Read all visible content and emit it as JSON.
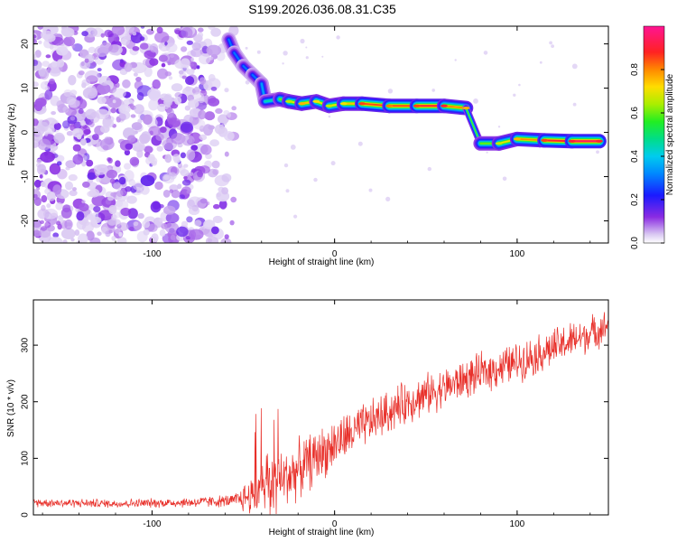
{
  "title": "S199.2026.036.08.31.C35",
  "chart_data": [
    {
      "type": "heatmap",
      "xlabel": "Height of straight line (km)",
      "ylabel": "Frequency (Hz)",
      "xlim": [
        -165,
        150
      ],
      "ylim": [
        -25,
        24
      ],
      "xticks": [
        "-100",
        "0",
        "100"
      ],
      "yticks": [
        "20",
        "10",
        "0",
        "-10",
        "-20"
      ],
      "colorbar": {
        "label": "Normalized spectral amplitude",
        "range": [
          0,
          1
        ],
        "ticks": [
          "0.0",
          "0.2",
          "0.4",
          "0.6",
          "0.8"
        ]
      },
      "ridge": [
        {
          "x": -58,
          "freq": 21,
          "amp": 0.3
        },
        {
          "x": -55,
          "freq": 18,
          "amp": 0.3
        },
        {
          "x": -50,
          "freq": 15,
          "amp": 0.3
        },
        {
          "x": -45,
          "freq": 13,
          "amp": 0.3
        },
        {
          "x": -40,
          "freq": 11,
          "amp": 0.35
        },
        {
          "x": -38,
          "freq": 7,
          "amp": 0.45
        },
        {
          "x": -30,
          "freq": 7.5,
          "amp": 0.6
        },
        {
          "x": -25,
          "freq": 7,
          "amp": 0.7
        },
        {
          "x": -18,
          "freq": 6.5,
          "amp": 0.8
        },
        {
          "x": -10,
          "freq": 7,
          "amp": 0.75
        },
        {
          "x": -3,
          "freq": 6,
          "amp": 0.7
        },
        {
          "x": 5,
          "freq": 6.5,
          "amp": 0.75
        },
        {
          "x": 15,
          "freq": 6.5,
          "amp": 0.9
        },
        {
          "x": 30,
          "freq": 6,
          "amp": 0.85
        },
        {
          "x": 45,
          "freq": 6,
          "amp": 0.9
        },
        {
          "x": 60,
          "freq": 6,
          "amp": 0.95
        },
        {
          "x": 72,
          "freq": 5.5,
          "amp": 0.8
        },
        {
          "x": 80,
          "freq": -2.5,
          "amp": 0.6
        },
        {
          "x": 90,
          "freq": -2.5,
          "amp": 0.7
        },
        {
          "x": 100,
          "freq": -1.5,
          "amp": 0.8
        },
        {
          "x": 115,
          "freq": -1.8,
          "amp": 0.9
        },
        {
          "x": 130,
          "freq": -2,
          "amp": 0.95
        },
        {
          "x": 145,
          "freq": -2,
          "amp": 0.95
        }
      ]
    },
    {
      "type": "line",
      "xlabel": "Height of straight line (km)",
      "ylabel": "SNR (10 * v/v)",
      "xlim": [
        -165,
        150
      ],
      "ylim": [
        0,
        380
      ],
      "xticks": [
        "-100",
        "0",
        "100"
      ],
      "yticks": [
        "0",
        "100",
        "200",
        "300"
      ],
      "color": "#e8302a",
      "series_envelope": {
        "x": [
          -165,
          -120,
          -80,
          -55,
          -45,
          -35,
          -20,
          0,
          20,
          40,
          60,
          80,
          100,
          120,
          140,
          150
        ],
        "mean": [
          22,
          20,
          22,
          25,
          35,
          50,
          80,
          125,
          165,
          200,
          225,
          250,
          270,
          295,
          320,
          335
        ],
        "spread": [
          12,
          12,
          14,
          18,
          60,
          90,
          80,
          70,
          60,
          60,
          55,
          55,
          55,
          55,
          50,
          45
        ]
      }
    }
  ]
}
